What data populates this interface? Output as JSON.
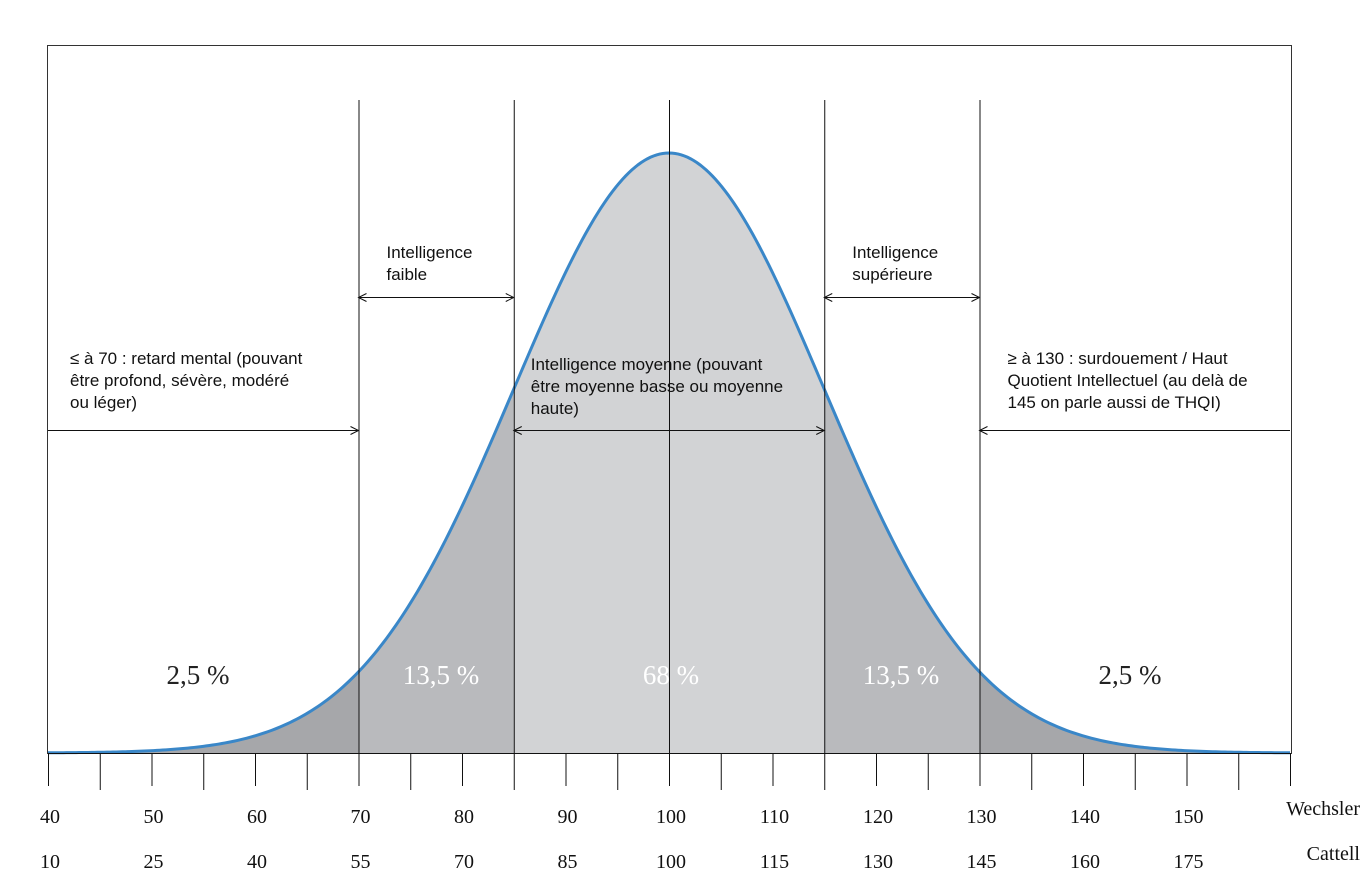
{
  "chart_data": {
    "type": "area",
    "title": "",
    "distribution": {
      "mean": 100,
      "sd": 15
    },
    "xlim": [
      40,
      160
    ],
    "scales": [
      {
        "name": "Wechsler",
        "ticks": [
          "40",
          "50",
          "60",
          "70",
          "80",
          "90",
          "100",
          "110",
          "120",
          "130",
          "140",
          "150"
        ]
      },
      {
        "name": "Cattell",
        "ticks": [
          "10",
          "25",
          "40",
          "55",
          "70",
          "85",
          "100",
          "115",
          "130",
          "145",
          "160",
          "175"
        ]
      }
    ],
    "boundaries": [
      70,
      85,
      115,
      130
    ],
    "segments": [
      {
        "from": 40,
        "to": 70,
        "percent": "2,5 %",
        "color": "#a6a7aa",
        "label_color": "#222222"
      },
      {
        "from": 70,
        "to": 85,
        "percent": "13,5 %",
        "color": "#b9babd",
        "label_color": "#ffffff"
      },
      {
        "from": 85,
        "to": 115,
        "percent": "68 %",
        "color": "#d2d3d5",
        "label_color": "#ffffff"
      },
      {
        "from": 115,
        "to": 130,
        "percent": "13,5 %",
        "color": "#b9babd",
        "label_color": "#ffffff"
      },
      {
        "from": 130,
        "to": 160,
        "percent": "2,5 %",
        "color": "#a6a7aa",
        "label_color": "#222222"
      }
    ],
    "annotations": [
      {
        "lines": [
          "≤ à 70 : retard mental (pouvant",
          "être profond, sévère, modéré",
          "ou léger)"
        ],
        "range": [
          40,
          70
        ]
      },
      {
        "lines": [
          "Intelligence",
          "faible"
        ],
        "range": [
          70,
          85
        ]
      },
      {
        "lines": [
          "Intelligence moyenne (pouvant",
          "être moyenne basse ou moyenne",
          "haute)"
        ],
        "range": [
          85,
          115
        ]
      },
      {
        "lines": [
          "Intelligence",
          "supérieure"
        ],
        "range": [
          115,
          130
        ]
      },
      {
        "lines": [
          "≥ à 130 : surdouement / Haut",
          "Quotient Intellectuel (au delà de",
          "145 on parle aussi de THQI)"
        ],
        "range": [
          130,
          160
        ]
      }
    ],
    "curve_color": "#3a87c8"
  }
}
